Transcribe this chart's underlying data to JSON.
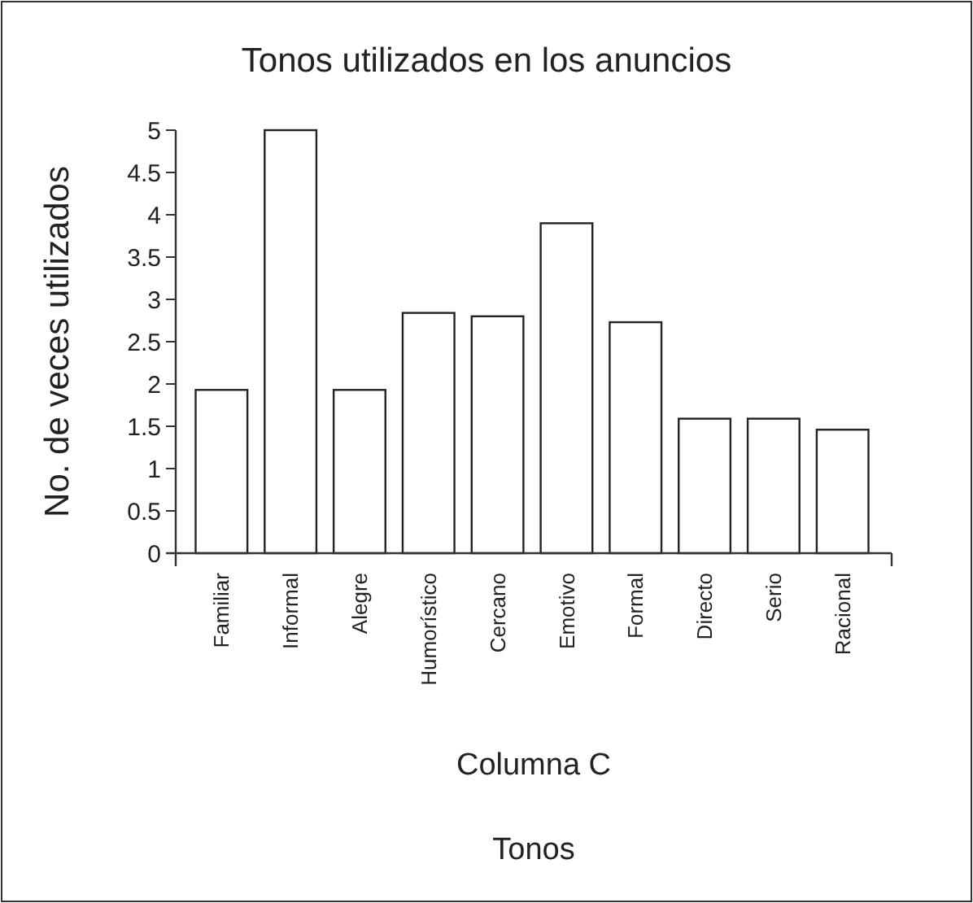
{
  "chart_data": {
    "type": "bar",
    "title": "Tonos utilizados en los anuncios",
    "xlabel": "Columna C",
    "ylabel": "No. de veces utilizados",
    "annotations": [
      "Tonos"
    ],
    "categories": [
      "Familiar",
      "Informal",
      "Alegre",
      "Humorístico",
      "Cercano",
      "Emotivo",
      "Formal",
      "Directo",
      "Serio",
      "Racional"
    ],
    "values": [
      1.93,
      5,
      1.93,
      2.84,
      2.8,
      3.9,
      2.73,
      1.59,
      1.59,
      1.46
    ],
    "color": "#ffffff",
    "ylim": [
      0,
      5
    ],
    "yticks": [
      0,
      0.5,
      1,
      1.5,
      2,
      2.5,
      3,
      3.5,
      4,
      4.5,
      5
    ],
    "grid": false
  }
}
